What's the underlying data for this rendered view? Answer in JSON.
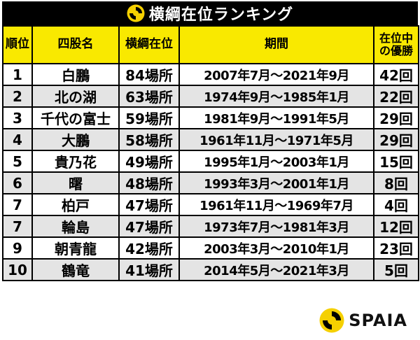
{
  "title": "横綱在位ランキング",
  "colors": {
    "title_bg": "#000000",
    "header_bg": "#f9e900",
    "row_alt_bg": "#e4e4e4",
    "logo_yellow": "#f5d000"
  },
  "table": {
    "headers": {
      "rank": "順位",
      "name": "四股名",
      "tenure": "横綱在位",
      "period": "期間",
      "wins_line1": "在位中",
      "wins_line2": "の優勝"
    },
    "rows": [
      {
        "rank": "1",
        "name": "白鵬",
        "tenure": "84場所",
        "period": "2007年7月～2021年9月",
        "wins": "42回"
      },
      {
        "rank": "2",
        "name": "北の湖",
        "tenure": "63場所",
        "period": "1974年9月～1985年1月",
        "wins": "22回"
      },
      {
        "rank": "3",
        "name": "千代の富士",
        "tenure": "59場所",
        "period": "1981年9月～1991年5月",
        "wins": "29回"
      },
      {
        "rank": "4",
        "name": "大鵬",
        "tenure": "58場所",
        "period": "1961年11月～1971年5月",
        "wins": "29回"
      },
      {
        "rank": "5",
        "name": "貴乃花",
        "tenure": "49場所",
        "period": "1995年1月～2003年1月",
        "wins": "15回"
      },
      {
        "rank": "6",
        "name": "曙",
        "tenure": "48場所",
        "period": "1993年3月～2001年1月",
        "wins": "8回"
      },
      {
        "rank": "7",
        "name": "柏戸",
        "tenure": "47場所",
        "period": "1961年11月～1969年7月",
        "wins": "4回"
      },
      {
        "rank": "7",
        "name": "輪島",
        "tenure": "47場所",
        "period": "1973年7月～1981年3月",
        "wins": "12回"
      },
      {
        "rank": "9",
        "name": "朝青龍",
        "tenure": "42場所",
        "period": "2003年3月～2010年1月",
        "wins": "23回"
      },
      {
        "rank": "10",
        "name": "鶴竜",
        "tenure": "41場所",
        "period": "2014年5月～2021年3月",
        "wins": "5回"
      }
    ]
  },
  "brand": {
    "name": "SPAIA",
    "icon": "spaia-logo-icon"
  }
}
